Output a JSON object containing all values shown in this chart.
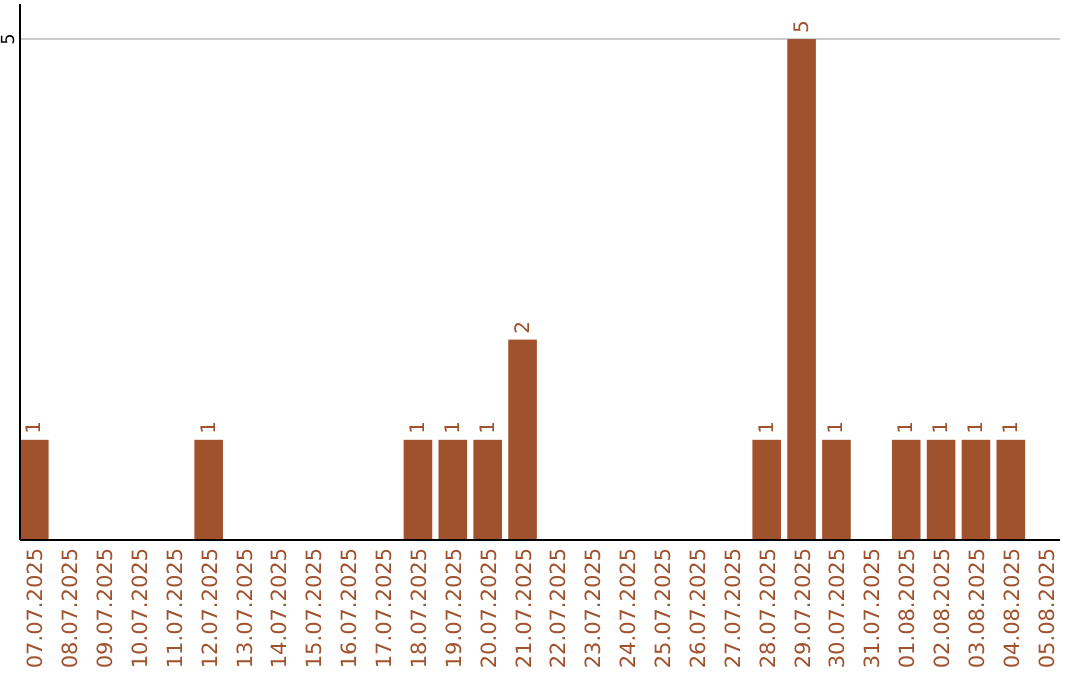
{
  "chart_data": {
    "type": "bar",
    "categories": [
      "07.07.2025",
      "08.07.2025",
      "09.07.2025",
      "10.07.2025",
      "11.07.2025",
      "12.07.2025",
      "13.07.2025",
      "14.07.2025",
      "15.07.2025",
      "16.07.2025",
      "17.07.2025",
      "18.07.2025",
      "19.07.2025",
      "20.07.2025",
      "21.07.2025",
      "22.07.2025",
      "23.07.2025",
      "24.07.2025",
      "25.07.2025",
      "26.07.2025",
      "27.07.2025",
      "28.07.2025",
      "29.07.2025",
      "30.07.2025",
      "31.07.2025",
      "01.08.2025",
      "02.08.2025",
      "03.08.2025",
      "04.08.2025",
      "05.08.2025"
    ],
    "values": [
      1,
      0,
      0,
      0,
      0,
      1,
      0,
      0,
      0,
      0,
      0,
      1,
      1,
      1,
      2,
      0,
      0,
      0,
      0,
      0,
      0,
      1,
      5,
      1,
      0,
      1,
      1,
      1,
      1,
      0
    ],
    "value_labels": [
      "1",
      null,
      null,
      null,
      null,
      "1",
      null,
      null,
      null,
      null,
      null,
      "1",
      "1",
      "1",
      "2",
      null,
      null,
      null,
      null,
      null,
      null,
      "1",
      "5",
      "1",
      null,
      "1",
      "1",
      "1",
      "1",
      null
    ],
    "color": "#a0522d",
    "ylim": [
      0,
      5.35
    ],
    "yticks": [
      5
    ],
    "grid": "y"
  }
}
